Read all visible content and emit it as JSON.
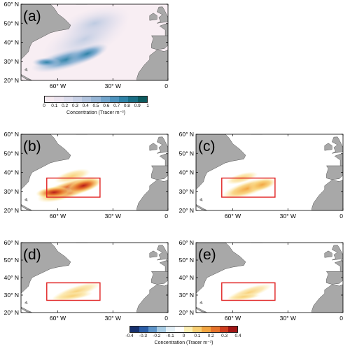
{
  "panels": [
    {
      "id": "a",
      "label": "(a)",
      "field": "concentration",
      "box": false
    },
    {
      "id": "b",
      "label": "(b)",
      "field": "strong",
      "box": true
    },
    {
      "id": "c",
      "label": "(c)",
      "field": "medium",
      "box": true
    },
    {
      "id": "d",
      "label": "(d)",
      "field": "weak",
      "box": true
    },
    {
      "id": "e",
      "label": "(e)",
      "field": "weak2",
      "box": true
    }
  ],
  "lat_ticks": [
    "20° N",
    "30° N",
    "40° N",
    "50° N",
    "60° N"
  ],
  "lon_ticks": [
    "60° W",
    "30° W",
    "0"
  ],
  "colorbar_top": {
    "ticks": [
      "0",
      "0.1",
      "0.2",
      "0.3",
      "0.4",
      "0.5",
      "0.6",
      "0.7",
      "0.8",
      "0.9",
      "1"
    ],
    "label": "Concentration (Tracer m⁻³)",
    "colors": [
      "#f6eaf0",
      "#ece4ef",
      "#dcdcec",
      "#c9d1e6",
      "#b2c4de",
      "#97b6d6",
      "#72a5cc",
      "#4f94bf",
      "#2f83a8",
      "#1a6f86",
      "#0c5a5e"
    ]
  },
  "colorbar_bottom": {
    "ticks": [
      "-0.4",
      "-0.3",
      "-0.2",
      "-0.1",
      "0",
      "0.1",
      "0.2",
      "0.3",
      "0.4"
    ],
    "label": "Concentration (Tracer m⁻³)",
    "colors": [
      "#16306e",
      "#2b5ea8",
      "#5f95c9",
      "#a8cce4",
      "#e4f0f7",
      "#ffffff",
      "#fcefb5",
      "#f8cf73",
      "#f2a541",
      "#e6722a",
      "#cf3d1f",
      "#a01515"
    ]
  },
  "colors": {
    "land": "#a8a8a8",
    "coast": "#555555",
    "box": "#e02020",
    "ocean_a": "#f8eef3"
  }
}
